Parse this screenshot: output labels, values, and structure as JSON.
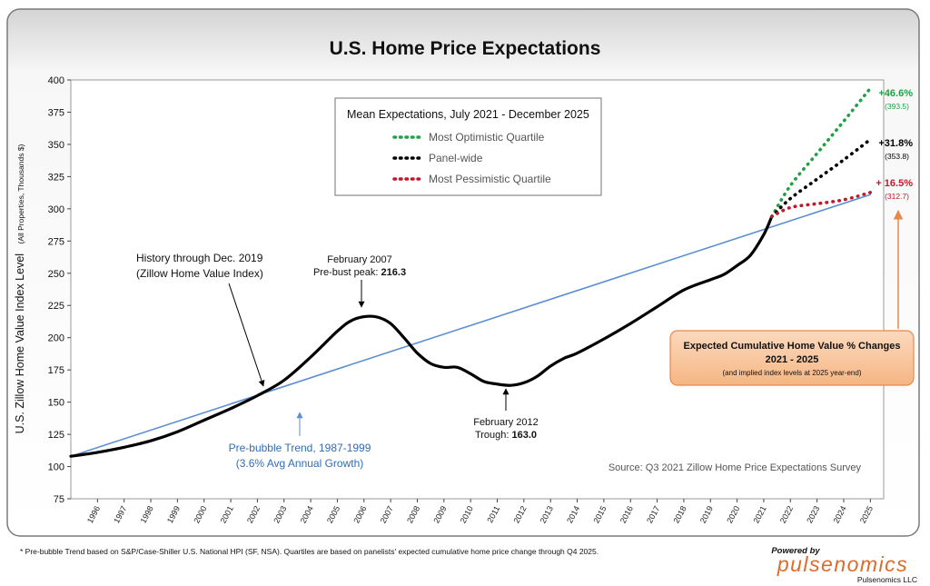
{
  "chart_data": {
    "type": "line",
    "title": "U.S. Home Price Expectations",
    "ylabel_main": "U.S. Zillow Home Value Index Level",
    "ylabel_sub": "(All Properties, Thousands $)",
    "xlim": [
      1995,
      2025.5
    ],
    "ylim": [
      75,
      400
    ],
    "yticks": [
      75,
      100,
      125,
      150,
      175,
      200,
      225,
      250,
      275,
      300,
      325,
      350,
      375,
      400
    ],
    "xticks": [
      "1996",
      "1997",
      "1998",
      "1999",
      "2000",
      "2001",
      "2002",
      "2003",
      "2004",
      "2005",
      "2006",
      "2007",
      "2008",
      "2009",
      "2010",
      "2011",
      "2012",
      "2013",
      "2014",
      "2015",
      "2016",
      "2017",
      "2018",
      "2019",
      "2020",
      "2021",
      "2022",
      "2023",
      "2024",
      "2025"
    ],
    "series": [
      {
        "name": "History through Dec. 2019 (Zillow Home Value Index)",
        "color": "#000000",
        "x": [
          1995,
          1996,
          1997,
          1998,
          1999,
          2000,
          2001,
          2002,
          2003,
          2004,
          2005,
          2005.5,
          2006,
          2006.5,
          2007,
          2007.5,
          2008,
          2008.5,
          2009,
          2009.5,
          2010,
          2010.5,
          2011,
          2011.5,
          2012,
          2012.5,
          2013,
          2013.5,
          2014,
          2015,
          2016,
          2017,
          2018,
          2019,
          2019.5,
          2020,
          2020.5,
          2021,
          2021.3
        ],
        "values": [
          108,
          111,
          115,
          120,
          127,
          136,
          145,
          155,
          167,
          185,
          205,
          213,
          216.3,
          216,
          211,
          200,
          188,
          180,
          177,
          177,
          172,
          166,
          164,
          163,
          165,
          170,
          178,
          184,
          188,
          199,
          211,
          224,
          237,
          245,
          249,
          256,
          264,
          280,
          294
        ]
      },
      {
        "name": "Pre-bubble Trend, 1987-1999",
        "color": "#5b8fd4",
        "x": [
          1995,
          2025
        ],
        "values": [
          108,
          311
        ]
      },
      {
        "name": "Most Optimistic Quartile",
        "color": "#22a045",
        "dotted": true,
        "x": [
          2021.3,
          2022,
          2023,
          2024,
          2025
        ],
        "values": [
          294,
          318,
          343,
          368,
          393.5
        ]
      },
      {
        "name": "Panel-wide",
        "color": "#000000",
        "dotted": true,
        "x": [
          2021.3,
          2022,
          2023,
          2024,
          2025
        ],
        "values": [
          294,
          308,
          323,
          338,
          353.8
        ]
      },
      {
        "name": "Most Pessimistic Quartile",
        "color": "#c0192b",
        "dotted": true,
        "x": [
          2021.3,
          2022,
          2023,
          2024,
          2025
        ],
        "values": [
          294,
          301,
          304,
          307,
          312.7
        ]
      }
    ],
    "legend": {
      "title": "Mean Expectations, July 2021 - December 2025",
      "items": [
        {
          "label": "Most Optimistic Quartile",
          "color": "#22a045"
        },
        {
          "label": "Panel-wide",
          "color": "#000000"
        },
        {
          "label": "Most Pessimistic Quartile",
          "color": "#c0192b"
        }
      ]
    },
    "annotations": {
      "history_1": "History through Dec. 2019",
      "history_2": "(Zillow Home Value Index)",
      "peak_1": "February 2007",
      "peak_2": "Pre-bust peak: ",
      "peak_value": "216.3",
      "trough_1": "February 2012",
      "trough_2": "Trough: ",
      "trough_value": "163.0",
      "trend_1": "Pre-bubble Trend, 1987-1999",
      "trend_2": "(3.6% Avg Annual Growth)",
      "source": "Source: Q3 2021 Zillow Home Price Expectations Survey",
      "optimistic_pct": "+46.6%",
      "optimistic_level": "(393.5)",
      "panel_pct": "+31.8%",
      "panel_level": "(353.8)",
      "pessimistic_pct": "+ 16.5%",
      "pessimistic_level": "(312.7)",
      "callout_1": "Expected Cumulative Home Value % Changes",
      "callout_2": "2021 - 2025",
      "callout_3": "(and implied  index levels at 2025 year-end)"
    }
  },
  "footer": {
    "note": "* Pre-bubble Trend based on S&P/Case-Shiller U.S. National HPI (SF, NSA).  Quartiles are based on panelists' expected cumulative home price change through Q4 2025.",
    "powered_by": "Powered by",
    "brand": "pulsenomics",
    "company": "Pulsenomics LLC"
  },
  "colors": {
    "optimistic": "#22a045",
    "panel": "#000000",
    "pessimistic": "#c0192b",
    "trend": "#5b8fd4",
    "trend_text": "#2f6db5",
    "callout_fill": "#f8c49c",
    "callout_border": "#e8874a",
    "brand": "#e06a28"
  }
}
